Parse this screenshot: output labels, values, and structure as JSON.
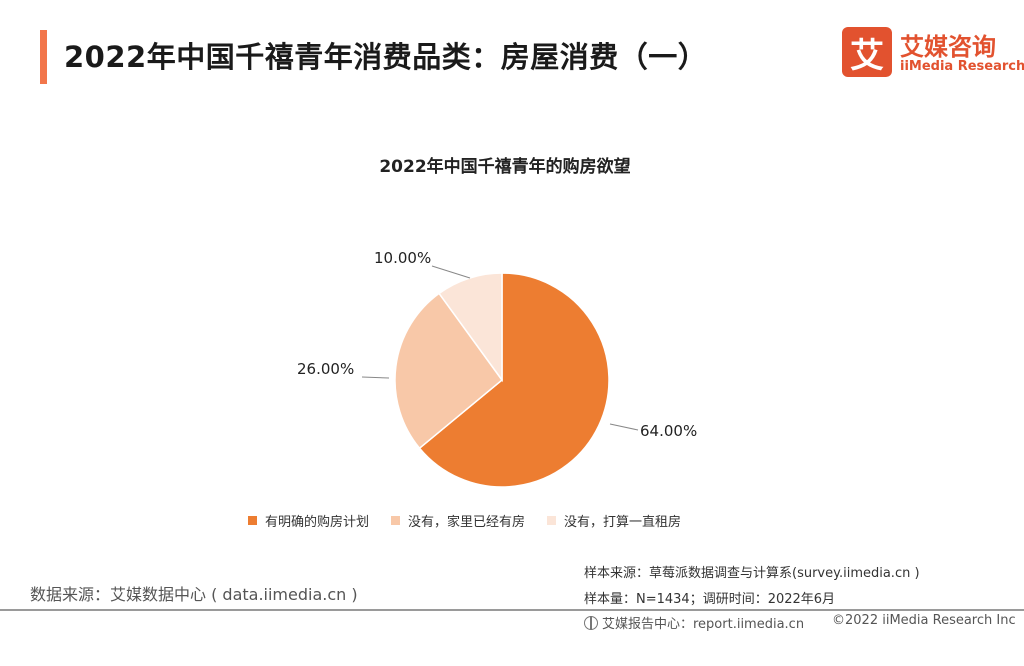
{
  "header": {
    "title": "2022年中国千禧青年消费品类：房屋消费（一）",
    "accent_color": "#f2764b"
  },
  "logo": {
    "glyph": "艾",
    "name_cn": "艾媒咨询",
    "name_en": "iiMedia Research",
    "color": "#e2522f"
  },
  "chart_data": {
    "type": "pie",
    "title": "2022年中国千禧青年的购房欲望",
    "slices": [
      {
        "label": "有明确的购房计划",
        "value": 64.0,
        "display": "64.00%",
        "color": "#ed7d31"
      },
      {
        "label": "没有，家里已经有房",
        "value": 26.0,
        "display": "26.00%",
        "color": "#f8c8a8"
      },
      {
        "label": "没有，打算一直租房",
        "value": 10.0,
        "display": "10.00%",
        "color": "#fbe5d8"
      }
    ],
    "legend_position": "bottom"
  },
  "notes": {
    "sample_source": "样本来源：草莓派数据调查与计算系(survey.iimedia.cn )",
    "sample_size": "样本量：N=1434；调研时间：2022年6月"
  },
  "data_source": "数据来源：艾媒数据中心 ( data.iimedia.cn )",
  "footer": {
    "report_site": "艾媒报告中心：report.iimedia.cn",
    "copyright": "©2022  iiMedia Research Inc"
  }
}
